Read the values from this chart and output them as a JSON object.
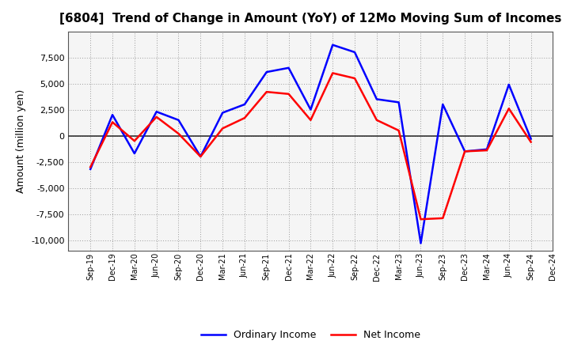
{
  "title": "[6804]  Trend of Change in Amount (YoY) of 12Mo Moving Sum of Incomes",
  "ylabel": "Amount (million yen)",
  "x_labels": [
    "Sep-19",
    "Dec-19",
    "Mar-20",
    "Jun-20",
    "Sep-20",
    "Dec-20",
    "Mar-21",
    "Jun-21",
    "Sep-21",
    "Dec-21",
    "Mar-22",
    "Jun-22",
    "Sep-22",
    "Dec-22",
    "Mar-23",
    "Jun-23",
    "Sep-23",
    "Dec-23",
    "Mar-24",
    "Jun-24",
    "Sep-24",
    "Dec-24"
  ],
  "ordinary_income": [
    -3200,
    2000,
    -1700,
    2300,
    1500,
    -2000,
    2200,
    3000,
    6100,
    6500,
    2500,
    8700,
    8000,
    3500,
    3200,
    -10300,
    3000,
    -1500,
    -1300,
    4900,
    -300,
    null
  ],
  "net_income": [
    -3000,
    1300,
    -500,
    1800,
    200,
    -2000,
    700,
    1700,
    4200,
    4000,
    1500,
    6000,
    5500,
    1500,
    500,
    -8000,
    -7900,
    -1500,
    -1400,
    2600,
    -600,
    null
  ],
  "ordinary_income_color": "#0000ff",
  "net_income_color": "#ff0000",
  "ylim": [
    -11000,
    10000
  ],
  "yticks": [
    -10000,
    -7500,
    -5000,
    -2500,
    0,
    2500,
    5000,
    7500
  ],
  "background_color": "#ffffff",
  "plot_bg_color": "#f5f5f5",
  "grid_color": "#999999",
  "legend_labels": [
    "Ordinary Income",
    "Net Income"
  ],
  "title_fontsize": 11,
  "axis_label_fontsize": 9,
  "tick_fontsize": 8,
  "xtick_fontsize": 7
}
